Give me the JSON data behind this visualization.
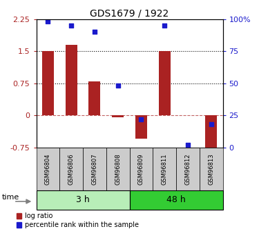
{
  "title": "GDS1679 / 1922",
  "samples": [
    "GSM96804",
    "GSM96806",
    "GSM96807",
    "GSM96808",
    "GSM96809",
    "GSM96811",
    "GSM96812",
    "GSM96813"
  ],
  "log_ratio": [
    1.5,
    1.65,
    0.8,
    -0.05,
    -0.55,
    1.5,
    0.0,
    -0.75
  ],
  "pct_rank": [
    98,
    95,
    90,
    48,
    22,
    95,
    2,
    18
  ],
  "groups": [
    {
      "label": "3 h",
      "start": 0,
      "end": 3
    },
    {
      "label": "48 h",
      "start": 4,
      "end": 7
    }
  ],
  "ylim_left": [
    -0.75,
    2.25
  ],
  "ylim_right": [
    0,
    100
  ],
  "yticks_left": [
    -0.75,
    0,
    0.75,
    1.5,
    2.25
  ],
  "yticks_right": [
    0,
    25,
    50,
    75,
    100
  ],
  "hlines": [
    0.75,
    1.5
  ],
  "bar_color": "#aa2222",
  "dot_color": "#1a1acc",
  "group_color_light": "#b8eeb8",
  "group_color_dark": "#33cc33",
  "sample_bg": "#cccccc",
  "legend_items": [
    "log ratio",
    "percentile rank within the sample"
  ],
  "bar_width": 0.5
}
